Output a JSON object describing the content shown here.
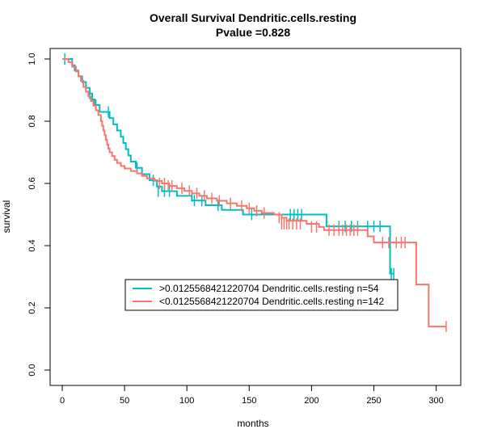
{
  "chart_data": {
    "type": "line",
    "title": "Overall Survival Dendritic.cells.resting",
    "subtitle": "Pvalue =0.828",
    "xlabel": "months",
    "ylabel": "survival",
    "xlim": [
      0,
      310
    ],
    "ylim": [
      0,
      1.05
    ],
    "x_ticks": [
      "0",
      "50",
      "100",
      "150",
      "200",
      "250",
      "300"
    ],
    "y_ticks": [
      "0.0",
      "0.2",
      "0.4",
      "0.6",
      "0.8",
      "1.0"
    ],
    "x_tick_values": [
      0,
      50,
      100,
      150,
      200,
      250,
      300
    ],
    "y_tick_values": [
      0,
      0.2,
      0.4,
      0.6,
      0.8,
      1.0
    ],
    "legend_position": "center-left",
    "series": [
      {
        "name": ">0.0125568421220704 Dendritic.cells.resting n=54",
        "color": "#00BFC4",
        "steps": [
          [
            0,
            1.0
          ],
          [
            8,
            0.98
          ],
          [
            10,
            0.963
          ],
          [
            13,
            0.944
          ],
          [
            16,
            0.926
          ],
          [
            19,
            0.907
          ],
          [
            22,
            0.889
          ],
          [
            24,
            0.87
          ],
          [
            26,
            0.852
          ],
          [
            28,
            0.852
          ],
          [
            30,
            0.83
          ],
          [
            36,
            0.83
          ],
          [
            38,
            0.81
          ],
          [
            41,
            0.79
          ],
          [
            44,
            0.77
          ],
          [
            47,
            0.75
          ],
          [
            49,
            0.73
          ],
          [
            51,
            0.71
          ],
          [
            53,
            0.69
          ],
          [
            55,
            0.67
          ],
          [
            59,
            0.65
          ],
          [
            64,
            0.63
          ],
          [
            70,
            0.61
          ],
          [
            76,
            0.59
          ],
          [
            80,
            0.575
          ],
          [
            88,
            0.575
          ],
          [
            92,
            0.56
          ],
          [
            100,
            0.56
          ],
          [
            104,
            0.545
          ],
          [
            110,
            0.545
          ],
          [
            115,
            0.53
          ],
          [
            125,
            0.53
          ],
          [
            128,
            0.515
          ],
          [
            140,
            0.515
          ],
          [
            145,
            0.5
          ],
          [
            150,
            0.5
          ],
          [
            158,
            0.5
          ],
          [
            210,
            0.5
          ],
          [
            212,
            0.462
          ],
          [
            262,
            0.462
          ],
          [
            263,
            0.31
          ],
          [
            266,
            0.31
          ]
        ],
        "censors": [
          [
            2,
            1.0
          ],
          [
            22,
            0.889
          ],
          [
            27,
            0.852
          ],
          [
            37,
            0.83
          ],
          [
            60,
            0.65
          ],
          [
            73,
            0.61
          ],
          [
            77,
            0.575
          ],
          [
            82,
            0.575
          ],
          [
            86,
            0.575
          ],
          [
            104,
            0.56
          ],
          [
            106,
            0.545
          ],
          [
            112,
            0.545
          ],
          [
            125,
            0.53
          ],
          [
            152,
            0.5
          ],
          [
            183,
            0.5
          ],
          [
            186,
            0.5
          ],
          [
            189,
            0.5
          ],
          [
            192,
            0.5
          ],
          [
            222,
            0.462
          ],
          [
            227,
            0.462
          ],
          [
            232,
            0.462
          ],
          [
            237,
            0.462
          ],
          [
            245,
            0.462
          ],
          [
            250,
            0.462
          ],
          [
            255,
            0.462
          ],
          [
            264,
            0.31
          ],
          [
            266,
            0.31
          ]
        ]
      },
      {
        "name": "<0.0125568421220704 Dendritic.cells.resting n=142",
        "color": "#F8766D",
        "steps": [
          [
            0,
            1.0
          ],
          [
            5,
            0.99
          ],
          [
            8,
            0.975
          ],
          [
            11,
            0.96
          ],
          [
            13,
            0.945
          ],
          [
            15,
            0.93
          ],
          [
            17,
            0.91
          ],
          [
            19,
            0.895
          ],
          [
            21,
            0.88
          ],
          [
            23,
            0.865
          ],
          [
            25,
            0.85
          ],
          [
            27,
            0.835
          ],
          [
            29,
            0.82
          ],
          [
            31,
            0.8
          ],
          [
            32,
            0.785
          ],
          [
            33,
            0.77
          ],
          [
            34,
            0.755
          ],
          [
            35,
            0.74
          ],
          [
            36,
            0.725
          ],
          [
            37,
            0.712
          ],
          [
            38,
            0.7
          ],
          [
            40,
            0.688
          ],
          [
            42,
            0.676
          ],
          [
            44,
            0.666
          ],
          [
            47,
            0.656
          ],
          [
            50,
            0.648
          ],
          [
            55,
            0.64
          ],
          [
            60,
            0.632
          ],
          [
            64,
            0.624
          ],
          [
            68,
            0.616
          ],
          [
            74,
            0.608
          ],
          [
            80,
            0.6
          ],
          [
            86,
            0.592
          ],
          [
            92,
            0.584
          ],
          [
            98,
            0.576
          ],
          [
            104,
            0.568
          ],
          [
            110,
            0.56
          ],
          [
            116,
            0.552
          ],
          [
            124,
            0.544
          ],
          [
            132,
            0.536
          ],
          [
            140,
            0.528
          ],
          [
            148,
            0.52
          ],
          [
            154,
            0.512
          ],
          [
            160,
            0.505
          ],
          [
            170,
            0.5
          ],
          [
            176,
            0.49
          ],
          [
            180,
            0.48
          ],
          [
            196,
            0.47
          ],
          [
            206,
            0.46
          ],
          [
            210,
            0.45
          ],
          [
            240,
            0.45
          ],
          [
            245,
            0.43
          ],
          [
            250,
            0.41
          ],
          [
            283,
            0.41
          ],
          [
            284,
            0.275
          ],
          [
            293,
            0.275
          ],
          [
            294,
            0.14
          ],
          [
            308,
            0.14
          ]
        ],
        "censors": [
          [
            78,
            0.6
          ],
          [
            82,
            0.6
          ],
          [
            85,
            0.592
          ],
          [
            88,
            0.592
          ],
          [
            96,
            0.584
          ],
          [
            102,
            0.576
          ],
          [
            108,
            0.568
          ],
          [
            114,
            0.56
          ],
          [
            120,
            0.552
          ],
          [
            126,
            0.544
          ],
          [
            135,
            0.536
          ],
          [
            144,
            0.528
          ],
          [
            150,
            0.52
          ],
          [
            156,
            0.512
          ],
          [
            162,
            0.505
          ],
          [
            174,
            0.49
          ],
          [
            176,
            0.47
          ],
          [
            178,
            0.47
          ],
          [
            180,
            0.47
          ],
          [
            182,
            0.47
          ],
          [
            185,
            0.47
          ],
          [
            188,
            0.47
          ],
          [
            191,
            0.47
          ],
          [
            200,
            0.46
          ],
          [
            204,
            0.46
          ],
          [
            214,
            0.45
          ],
          [
            218,
            0.45
          ],
          [
            222,
            0.45
          ],
          [
            225,
            0.45
          ],
          [
            228,
            0.45
          ],
          [
            231,
            0.45
          ],
          [
            234,
            0.45
          ],
          [
            237,
            0.45
          ],
          [
            257,
            0.41
          ],
          [
            262,
            0.41
          ],
          [
            268,
            0.41
          ],
          [
            272,
            0.41
          ],
          [
            275,
            0.41
          ],
          [
            308,
            0.14
          ]
        ]
      }
    ]
  }
}
